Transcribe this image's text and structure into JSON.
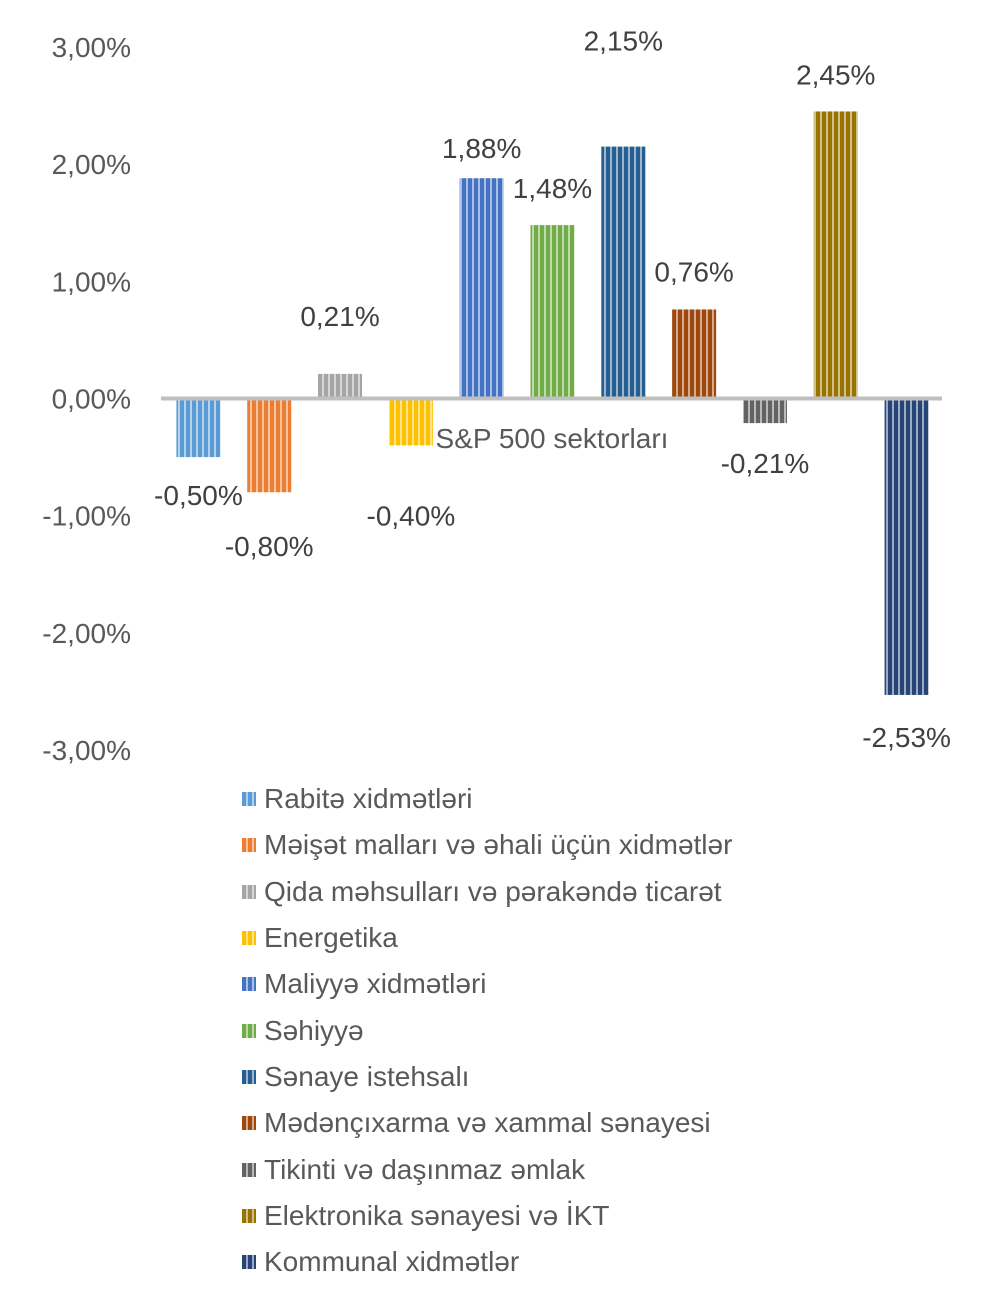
{
  "chart_data": {
    "type": "bar",
    "xlabel": "S&P 500 sektorları",
    "ylabel": "",
    "ylim": [
      -3,
      3
    ],
    "y_ticks": [
      "3,00%",
      "2,00%",
      "1,00%",
      "0,00%",
      "-1,00%",
      "-2,00%",
      "-3,00%"
    ],
    "grid": false,
    "legend_position": "bottom",
    "series": [
      {
        "name": "Rabitə xidmətləri",
        "value": -0.5,
        "label": "-0,50%",
        "color": "#5B9BD5"
      },
      {
        "name": "Məişət malları və əhali üçün xidmətlər",
        "value": -0.8,
        "label": "-0,80%",
        "color": "#ED7D31"
      },
      {
        "name": "Qida məhsulları və pərakəndə ticarət",
        "value": 0.21,
        "label": "0,21%",
        "color": "#A5A5A5"
      },
      {
        "name": "Energetika",
        "value": -0.4,
        "label": "-0,40%",
        "color": "#FFC000"
      },
      {
        "name": "Maliyyə xidmətləri",
        "value": 1.88,
        "label": "1,88%",
        "color": "#4472C4"
      },
      {
        "name": "Səhiyyə",
        "value": 1.48,
        "label": "1,48%",
        "color": "#70AD47"
      },
      {
        "name": "Sənaye istehsalı",
        "value": 2.15,
        "label": "2,15%",
        "color": "#255E91"
      },
      {
        "name": "Mədənçıxarma və xammal sənayesi",
        "value": 0.76,
        "label": "0,76%",
        "color": "#9E480E"
      },
      {
        "name": "Tikinti və daşınmaz əmlak",
        "value": -0.21,
        "label": "-0,21%",
        "color": "#636363"
      },
      {
        "name": "Elektronika sənayesi və İKT",
        "value": 2.45,
        "label": "2,45%",
        "color": "#997300"
      },
      {
        "name": "Kommunal xidmətlər",
        "value": -2.53,
        "label": "-2,53%",
        "color": "#264478"
      }
    ]
  }
}
